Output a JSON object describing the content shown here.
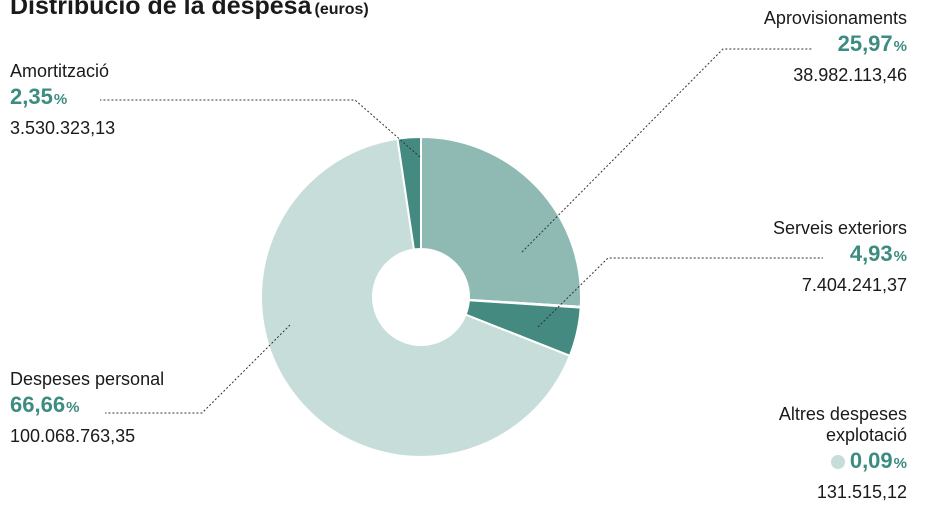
{
  "chart_data": {
    "type": "pie",
    "title": "Distribució de la despesa",
    "unit_label": "(euros)",
    "percent_symbol": "%",
    "series": [
      {
        "name": "Aprovisionaments",
        "percent": 25.97,
        "percent_label": "25,97",
        "value": 38982113.46,
        "value_label": "38.982.113,46",
        "color": "#8fbab3"
      },
      {
        "name": "Altres despeses explotació",
        "percent": 0.09,
        "percent_label": "0,09",
        "value": 131515.12,
        "value_label": "131.515,12",
        "color": "#c6ddd9"
      },
      {
        "name": "Serveis exteriors",
        "percent": 4.93,
        "percent_label": "4,93",
        "value": 7404241.37,
        "value_label": "7.404.241,37",
        "color": "#448a80"
      },
      {
        "name": "Despeses personal",
        "percent": 66.66,
        "percent_label": "66,66",
        "value": 100068763.35,
        "value_label": "100.068.763,35",
        "color": "#c6ddd9"
      },
      {
        "name": "Amortització",
        "percent": 2.35,
        "percent_label": "2,35",
        "value": 3530323.13,
        "value_label": "3.530.323,13",
        "color": "#448a80"
      }
    ],
    "legend": "callouts",
    "label_color": "#3d8c81"
  }
}
